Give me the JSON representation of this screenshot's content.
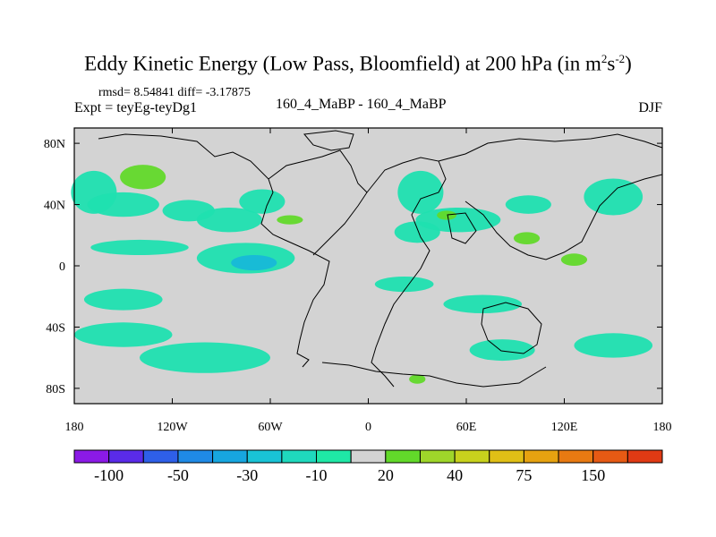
{
  "title": {
    "text": "Eddy Kinetic Energy (Low Pass, Bloomfield) at 200 hPa (in m",
    "unit_exp1": "2",
    "unit_mid": "s",
    "unit_exp2": "-2",
    "close": ")"
  },
  "stats": "rmsd= 8.54841 diff= -3.17875",
  "expt": "Expt = teyEg-teyDg1",
  "runs": "160_4_MaBP - 160_4_MaBP",
  "season": "DJF",
  "chart_data": {
    "type": "heatmap",
    "title": "Eddy Kinetic Energy (Low Pass, Bloomfield) at 200 hPa (in m^2 s^-2)",
    "xlim": [
      -180,
      180
    ],
    "ylim": [
      -90,
      90
    ],
    "x_ticks": [
      {
        "value": -180,
        "label": "180"
      },
      {
        "value": -120,
        "label": "120W"
      },
      {
        "value": -60,
        "label": "60W"
      },
      {
        "value": 0,
        "label": "0"
      },
      {
        "value": 60,
        "label": "60E"
      },
      {
        "value": 120,
        "label": "120E"
      },
      {
        "value": 180,
        "label": "180"
      }
    ],
    "y_ticks": [
      {
        "value": 80,
        "label": "80N"
      },
      {
        "value": 40,
        "label": "40N"
      },
      {
        "value": 0,
        "label": "0"
      },
      {
        "value": -40,
        "label": "40S"
      },
      {
        "value": -80,
        "label": "80S"
      }
    ],
    "background_color": "#d3d3d3",
    "colorbar": {
      "colors": [
        "#8b1ae6",
        "#5a2be8",
        "#2e5fe8",
        "#1f8ae6",
        "#17a6e0",
        "#19c3d6",
        "#1fd9bd",
        "#1fe8a6",
        "#d3d3d3",
        "#62d92a",
        "#9fd62a",
        "#c8d21d",
        "#e0bf16",
        "#e6a210",
        "#e87a12",
        "#e65a14",
        "#e03a14"
      ],
      "labels": [
        {
          "after_box": 1,
          "text": "-100"
        },
        {
          "after_box": 3,
          "text": "-50"
        },
        {
          "after_box": 5,
          "text": "-30"
        },
        {
          "after_box": 7,
          "text": "-10"
        },
        {
          "after_box": 9,
          "text": "20"
        },
        {
          "after_box": 11,
          "text": "40"
        },
        {
          "after_box": 13,
          "text": "75"
        },
        {
          "after_box": 15,
          "text": "150"
        }
      ]
    },
    "shaded_regions": [
      {
        "name": "cyan-n-pacific-west",
        "category": "-10",
        "color": "#1fe0b0",
        "center_lon": -168,
        "center_lat": 48,
        "r_lon": 14,
        "r_lat": 14
      },
      {
        "name": "green-n-pacific",
        "category": "10-20",
        "color": "#62d92a",
        "center_lon": -138,
        "center_lat": 58,
        "r_lon": 14,
        "r_lat": 8
      },
      {
        "name": "cyan-n-pacific-central",
        "category": "-10",
        "color": "#1fe0b0",
        "center_lon": -150,
        "center_lat": 40,
        "r_lon": 22,
        "r_lat": 8
      },
      {
        "name": "cyan-ne-pacific",
        "category": "-10",
        "color": "#1fe0b0",
        "center_lon": -110,
        "center_lat": 36,
        "r_lon": 16,
        "r_lat": 7
      },
      {
        "name": "cyan-n-america",
        "category": "-10",
        "color": "#1fe0b0",
        "center_lon": -85,
        "center_lat": 30,
        "r_lon": 20,
        "r_lat": 8
      },
      {
        "name": "cyan-n-america-2",
        "category": "-10",
        "color": "#1fe0b0",
        "center_lon": -65,
        "center_lat": 42,
        "r_lon": 14,
        "r_lat": 8
      },
      {
        "name": "green-atlantic-strip",
        "category": "10-20",
        "color": "#62d92a",
        "center_lon": -48,
        "center_lat": 30,
        "r_lon": 8,
        "r_lat": 3
      },
      {
        "name": "cyan-trop-east-pacific",
        "category": "-10",
        "color": "#1fe0b0",
        "center_lon": -75,
        "center_lat": 5,
        "r_lon": 30,
        "r_lat": 10
      },
      {
        "name": "blue-trop-east-pacific",
        "category": "-30",
        "color": "#17b8d8",
        "center_lon": -70,
        "center_lat": 2,
        "r_lon": 14,
        "r_lat": 5
      },
      {
        "name": "cyan-trop-central-pacific",
        "category": "-10",
        "color": "#1fe0b0",
        "center_lon": -140,
        "center_lat": 12,
        "r_lon": 30,
        "r_lat": 5
      },
      {
        "name": "cyan-s-pacific",
        "category": "-10",
        "color": "#1fe0b0",
        "center_lon": -150,
        "center_lat": -22,
        "r_lon": 24,
        "r_lat": 7
      },
      {
        "name": "cyan-s-pacific-2",
        "category": "-10",
        "color": "#1fe0b0",
        "center_lon": -100,
        "center_lat": -60,
        "r_lon": 40,
        "r_lat": 10
      },
      {
        "name": "cyan-s-pacific-3",
        "category": "-10",
        "color": "#1fe0b0",
        "center_lon": -150,
        "center_lat": -45,
        "r_lon": 30,
        "r_lat": 8
      },
      {
        "name": "cyan-siberia",
        "category": "-10",
        "color": "#1fe0b0",
        "center_lon": 32,
        "center_lat": 48,
        "r_lon": 14,
        "r_lat": 14
      },
      {
        "name": "cyan-asia",
        "category": "-10",
        "color": "#1fe0b0",
        "center_lon": 55,
        "center_lat": 30,
        "r_lon": 26,
        "r_lat": 8
      },
      {
        "name": "cyan-n-africa",
        "category": "-10",
        "color": "#1fe0b0",
        "center_lon": 30,
        "center_lat": 22,
        "r_lon": 14,
        "r_lat": 7
      },
      {
        "name": "green-asia-small",
        "category": "10-20",
        "color": "#62d92a",
        "center_lon": 48,
        "center_lat": 33,
        "r_lon": 6,
        "r_lat": 3
      },
      {
        "name": "cyan-e-asia",
        "category": "-10",
        "color": "#1fe0b0",
        "center_lon": 98,
        "center_lat": 40,
        "r_lon": 14,
        "r_lat": 6
      },
      {
        "name": "green-e-asia",
        "category": "10-20",
        "color": "#62d92a",
        "center_lon": 97,
        "center_lat": 18,
        "r_lon": 8,
        "r_lat": 4
      },
      {
        "name": "cyan-nw-pacific",
        "category": "-10",
        "color": "#1fe0b0",
        "center_lon": 150,
        "center_lat": 45,
        "r_lon": 18,
        "r_lat": 12
      },
      {
        "name": "green-w-pacific",
        "category": "10-20",
        "color": "#62d92a",
        "center_lon": 126,
        "center_lat": 4,
        "r_lon": 8,
        "r_lat": 4
      },
      {
        "name": "cyan-trop-atlantic",
        "category": "-10",
        "color": "#1fe0b0",
        "center_lon": 22,
        "center_lat": -12,
        "r_lon": 18,
        "r_lat": 5
      },
      {
        "name": "cyan-s-atlantic",
        "category": "-10",
        "color": "#1fe0b0",
        "center_lon": 70,
        "center_lat": -25,
        "r_lon": 24,
        "r_lat": 6
      },
      {
        "name": "cyan-s-indian",
        "category": "-10",
        "color": "#1fe0b0",
        "center_lon": 82,
        "center_lat": -55,
        "r_lon": 20,
        "r_lat": 7
      },
      {
        "name": "cyan-s-indian-2",
        "category": "-10",
        "color": "#1fe0b0",
        "center_lon": 150,
        "center_lat": -52,
        "r_lon": 24,
        "r_lat": 8
      },
      {
        "name": "green-s-africa",
        "category": "10-20",
        "color": "#62d92a",
        "center_lon": 30,
        "center_lat": -74,
        "r_lon": 5,
        "r_lat": 3
      }
    ]
  }
}
